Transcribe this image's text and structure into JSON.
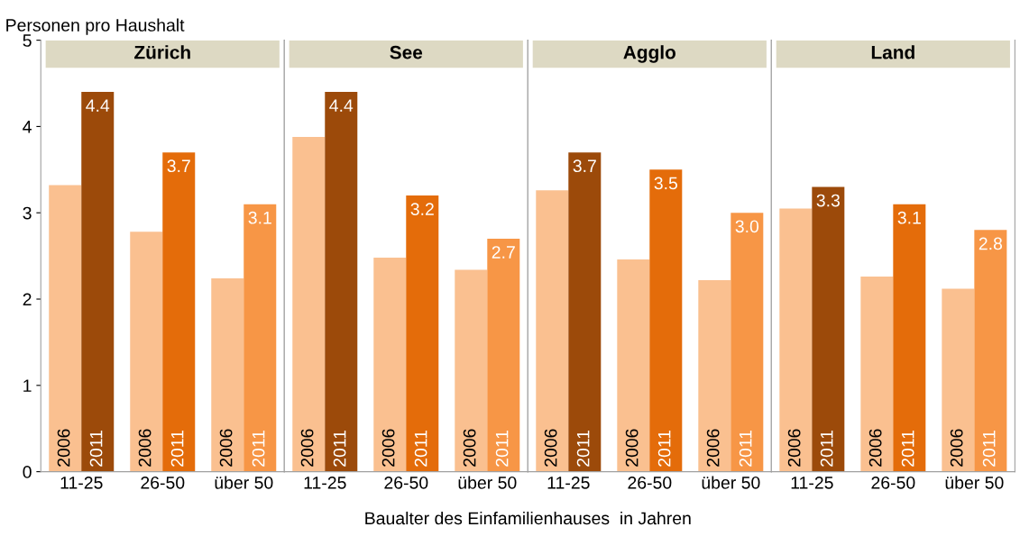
{
  "chart_data": [
    {
      "type": "bar",
      "title": "Zürich",
      "ylabel": "Personen pro Haushalt",
      "xlabel": "Baualter des Einfamilienhauses  in Jahren",
      "categories": [
        "11-25",
        "26-50",
        "über 50"
      ],
      "ylim": [
        0,
        5
      ],
      "yticks": [
        0,
        1,
        2,
        3,
        4,
        5
      ],
      "grid": false,
      "series": [
        {
          "name": "2006",
          "color": "#fac090",
          "values": [
            3.32,
            2.78,
            2.24
          ]
        },
        {
          "name": "2011",
          "colors": [
            "#9c4a0a",
            "#e46c0a",
            "#f79646"
          ],
          "values": [
            4.4,
            3.7,
            3.1
          ],
          "value_labels": [
            "4.4",
            "3.7",
            "3.1"
          ]
        }
      ]
    },
    {
      "type": "bar",
      "title": "See",
      "categories": [
        "11-25",
        "26-50",
        "über 50"
      ],
      "ylim": [
        0,
        5
      ],
      "yticks": [
        0,
        1,
        2,
        3,
        4,
        5
      ],
      "grid": false,
      "tick_labels": "x",
      "series": [
        {
          "name": "2006",
          "color": "#fac090",
          "values": [
            3.88,
            2.48,
            2.34
          ]
        },
        {
          "name": "2011",
          "colors": [
            "#9c4a0a",
            "#e46c0a",
            "#f79646"
          ],
          "values": [
            4.4,
            3.2,
            2.7
          ],
          "value_labels": [
            "4.4",
            "3.2",
            "2.7"
          ]
        }
      ]
    },
    {
      "type": "bar",
      "title": "Agglo",
      "categories": [
        "11-25",
        "26-50",
        "über 50"
      ],
      "ylim": [
        0,
        5
      ],
      "yticks": [
        0,
        1,
        2,
        3,
        4,
        5
      ],
      "grid": false,
      "tick_labels": "x",
      "series": [
        {
          "name": "2006",
          "color": "#fac090",
          "values": [
            3.26,
            2.46,
            2.22
          ]
        },
        {
          "name": "2011",
          "colors": [
            "#9c4a0a",
            "#e46c0a",
            "#f79646"
          ],
          "values": [
            3.7,
            3.5,
            3.0
          ],
          "value_labels": [
            "3.7",
            "3.5",
            "3.0"
          ]
        }
      ]
    },
    {
      "type": "bar",
      "title": "Land",
      "categories": [
        "11-25",
        "26-50",
        "über 50"
      ],
      "ylim": [
        0,
        5
      ],
      "yticks": [
        0,
        1,
        2,
        3,
        4,
        5
      ],
      "grid": false,
      "tick_labels": "x",
      "series": [
        {
          "name": "2006",
          "color": "#fac090",
          "values": [
            3.05,
            2.26,
            2.12
          ]
        },
        {
          "name": "2011",
          "colors": [
            "#9c4a0a",
            "#e46c0a",
            "#f79646"
          ],
          "values": [
            3.3,
            3.1,
            2.8
          ],
          "value_labels": [
            "3.3",
            "3.1",
            "2.8"
          ]
        }
      ]
    }
  ]
}
